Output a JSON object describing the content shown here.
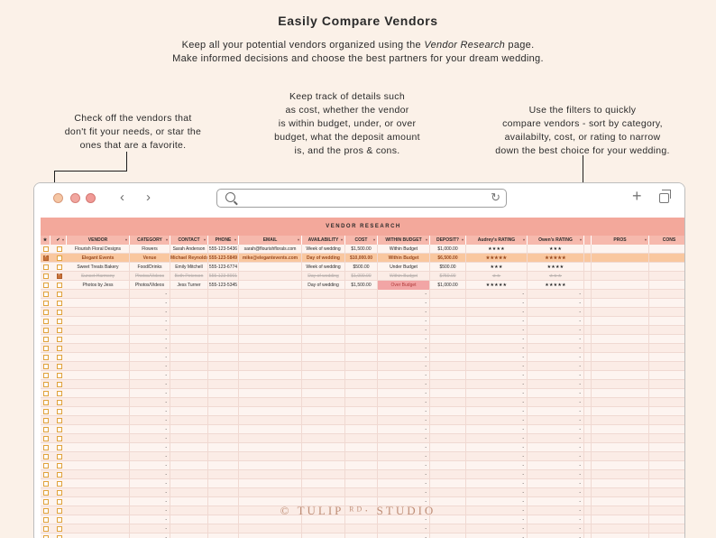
{
  "header": {
    "title": "Easily Compare Vendors",
    "intro_line1_pre": "Keep all your potential vendors organized using the ",
    "intro_line1_em": "Vendor Research",
    "intro_line1_post": " page.",
    "intro_line2": "Make informed decisions and choose the best partners for your dream wedding."
  },
  "callouts": {
    "left": [
      "Check off the vendors that",
      "don't fit your needs, or star the",
      "ones that are a favorite."
    ],
    "middle": [
      "Keep track of details such",
      "as cost, whether the vendor",
      "is within budget, under, or over",
      "budget, what the deposit amount",
      "is, and the pros & cons."
    ],
    "right": [
      "Use the filters to quickly",
      "compare vendors - sort by category,",
      "availabilty, cost, or rating to narrow",
      "down the best choice for your wedding."
    ]
  },
  "browser": {
    "back_icon": "‹",
    "forward_icon": "›",
    "reload_icon": "↻",
    "new_tab_icon": "+"
  },
  "sheet": {
    "title": "VENDOR RESEARCH",
    "columns": [
      "★",
      "✔",
      "VENDOR",
      "CATEGORY",
      "CONTACT",
      "PHONE",
      "EMAIL",
      "AVAILABILITY",
      "COST",
      "WITHIN BUDGET",
      "DEPOSIT?",
      "Audrey's RATING",
      "Owen's RATING",
      "",
      "PROS",
      "CONS"
    ],
    "rows": [
      {
        "star": false,
        "check": false,
        "vendor": "Flourish Floral Designs",
        "category": "Flowers",
        "contact": "Sarah Anderson",
        "phone": "555-123-5436",
        "email": "sarah@flourishflorals.com",
        "availability": "Week of wedding",
        "cost": "$1,500.00",
        "budget": "Within Budget",
        "deposit": "$1,000.00",
        "audrey": "★★★★",
        "owen": "★★★",
        "style": "normal"
      },
      {
        "star": true,
        "check": false,
        "vendor": "Elegant Events",
        "category": "Venue",
        "contact": "Michael Reynolds",
        "phone": "555-123-5849",
        "email": "mike@elegantevents.com",
        "availability": "Day of wedding",
        "cost": "$10,000.00",
        "budget": "Within Budget",
        "deposit": "$6,500.00",
        "audrey": "★★★★★",
        "owen": "★★★★★",
        "style": "favorite"
      },
      {
        "star": false,
        "check": false,
        "vendor": "Sweet Treats Bakery",
        "category": "Food/Drinks",
        "contact": "Emily Mitchell",
        "phone": "555-123-6774",
        "email": "",
        "availability": "Week of wedding",
        "cost": "$500.00",
        "budget": "Under Budget",
        "deposit": "$500.00",
        "audrey": "★★★",
        "owen": "★★★★",
        "style": "normal"
      },
      {
        "star": false,
        "check": true,
        "vendor": "Sunset Harmony",
        "category": "Photos/Videos",
        "contact": "Beth Peterson",
        "phone": "555-123-8901",
        "email": "",
        "availability": "Day of wedding",
        "cost": "$1,000.00",
        "budget": "Within Budget",
        "deposit": "$750.00",
        "audrey": "★★",
        "owen": "★★★",
        "style": "crossed"
      },
      {
        "star": false,
        "check": false,
        "vendor": "Photos by Jess",
        "category": "Photos/Videos",
        "contact": "Jess Turner",
        "phone": "555-123-5345",
        "email": "",
        "availability": "Day of wedding",
        "cost": "$1,500.00",
        "budget": "Over Budget",
        "deposit": "$1,000.00",
        "audrey": "★★★★★",
        "owen": "★★★★★",
        "style": "normal"
      }
    ],
    "empty_rows": 28,
    "dash": "-"
  },
  "watermark": "© TULIP ᴿᴰ· STUDIO",
  "colors": {
    "accent": "#f3a89b",
    "header": "#f6b9ad",
    "favorite": "#f9c79f",
    "over_budget": "#f2a5a5",
    "checkbox": "#e0a23b"
  }
}
